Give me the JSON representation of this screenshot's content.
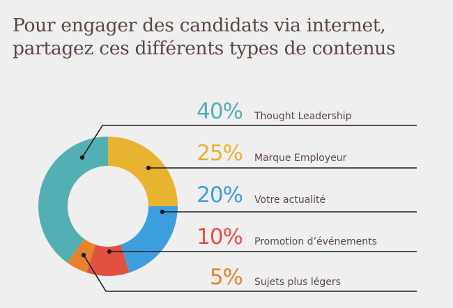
{
  "header": {
    "title_line1": "Pour engager des candidats via internet,",
    "title_line2": "partagez ces différents types de contenus"
  },
  "legend": [
    {
      "pct": "40%",
      "label": "Thought Leadership",
      "color": "#52afb4"
    },
    {
      "pct": "25%",
      "label": "Marque Employeur",
      "color": "#e8b331"
    },
    {
      "pct": "20%",
      "label": "Votre actualité",
      "color": "#3d9ede"
    },
    {
      "pct": "10%",
      "label": "Promotion d’événements",
      "color": "#e05140"
    },
    {
      "pct": "5%",
      "label": "Sujets plus légers",
      "color": "#e5832f"
    }
  ],
  "chart_data": {
    "type": "pie",
    "variant": "donut",
    "title": "Pour engager des candidats via internet, partagez ces différents types de contenus",
    "categories": [
      "Thought Leadership",
      "Marque Employeur",
      "Votre actualité",
      "Promotion d’événements",
      "Sujets plus légers"
    ],
    "values": [
      40,
      25,
      20,
      10,
      5
    ],
    "unit": "%",
    "colors": [
      "#52afb4",
      "#e8b331",
      "#3d9ede",
      "#e05140",
      "#e5832f"
    ],
    "legend_position": "right"
  }
}
